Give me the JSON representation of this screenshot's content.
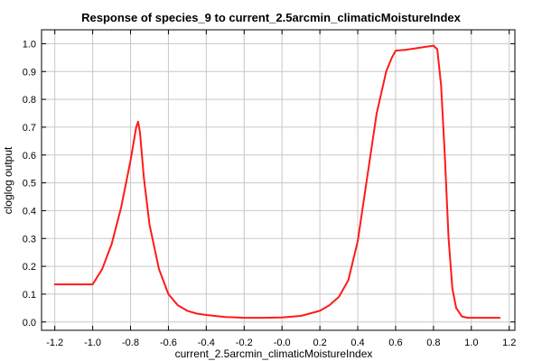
{
  "chart_data": {
    "type": "line",
    "title": "Response of species_9 to current_2.5arcmin_climaticMoistureIndex",
    "xlabel": "current_2.5arcmin_climaticMoistureIndex",
    "ylabel": "cloglog output",
    "xlim": [
      -1.27,
      1.23
    ],
    "ylim": [
      -0.03,
      1.05
    ],
    "x_ticks": [
      "-1.2",
      "-1.0",
      "-0.8",
      "-0.6",
      "-0.4",
      "-0.2",
      "-0.0",
      "0.2",
      "0.4",
      "0.6",
      "0.8",
      "1.0",
      "1.2"
    ],
    "x_tick_values": [
      -1.2,
      -1.0,
      -0.8,
      -0.6,
      -0.4,
      -0.2,
      0.0,
      0.2,
      0.4,
      0.6,
      0.8,
      1.0,
      1.2
    ],
    "y_ticks": [
      "0.0",
      "0.1",
      "0.2",
      "0.3",
      "0.4",
      "0.5",
      "0.6",
      "0.7",
      "0.8",
      "0.9",
      "1.0"
    ],
    "y_tick_values": [
      0.0,
      0.1,
      0.2,
      0.3,
      0.4,
      0.5,
      0.6,
      0.7,
      0.8,
      0.9,
      1.0
    ],
    "grid": true,
    "series_color": "#ff1a1a",
    "series": [
      {
        "x": [
          -1.2,
          -1.0,
          -0.95,
          -0.9,
          -0.85,
          -0.8,
          -0.77,
          -0.76,
          -0.75,
          -0.73,
          -0.7,
          -0.65,
          -0.6,
          -0.55,
          -0.5,
          -0.45,
          -0.4,
          -0.3,
          -0.2,
          -0.1,
          0.0,
          0.1,
          0.2,
          0.25,
          0.3,
          0.35,
          0.4,
          0.45,
          0.5,
          0.55,
          0.58,
          0.6,
          0.65,
          0.7,
          0.75,
          0.8,
          0.82,
          0.84,
          0.86,
          0.88,
          0.9,
          0.92,
          0.95,
          0.98,
          1.0,
          1.1,
          1.15
        ],
        "y": [
          0.135,
          0.135,
          0.19,
          0.28,
          0.41,
          0.58,
          0.7,
          0.72,
          0.68,
          0.52,
          0.35,
          0.19,
          0.1,
          0.06,
          0.04,
          0.03,
          0.025,
          0.018,
          0.015,
          0.015,
          0.016,
          0.022,
          0.04,
          0.06,
          0.09,
          0.15,
          0.29,
          0.52,
          0.75,
          0.9,
          0.95,
          0.975,
          0.978,
          0.983,
          0.988,
          0.993,
          0.98,
          0.85,
          0.6,
          0.3,
          0.12,
          0.05,
          0.02,
          0.015,
          0.015,
          0.015,
          0.015
        ]
      }
    ]
  }
}
